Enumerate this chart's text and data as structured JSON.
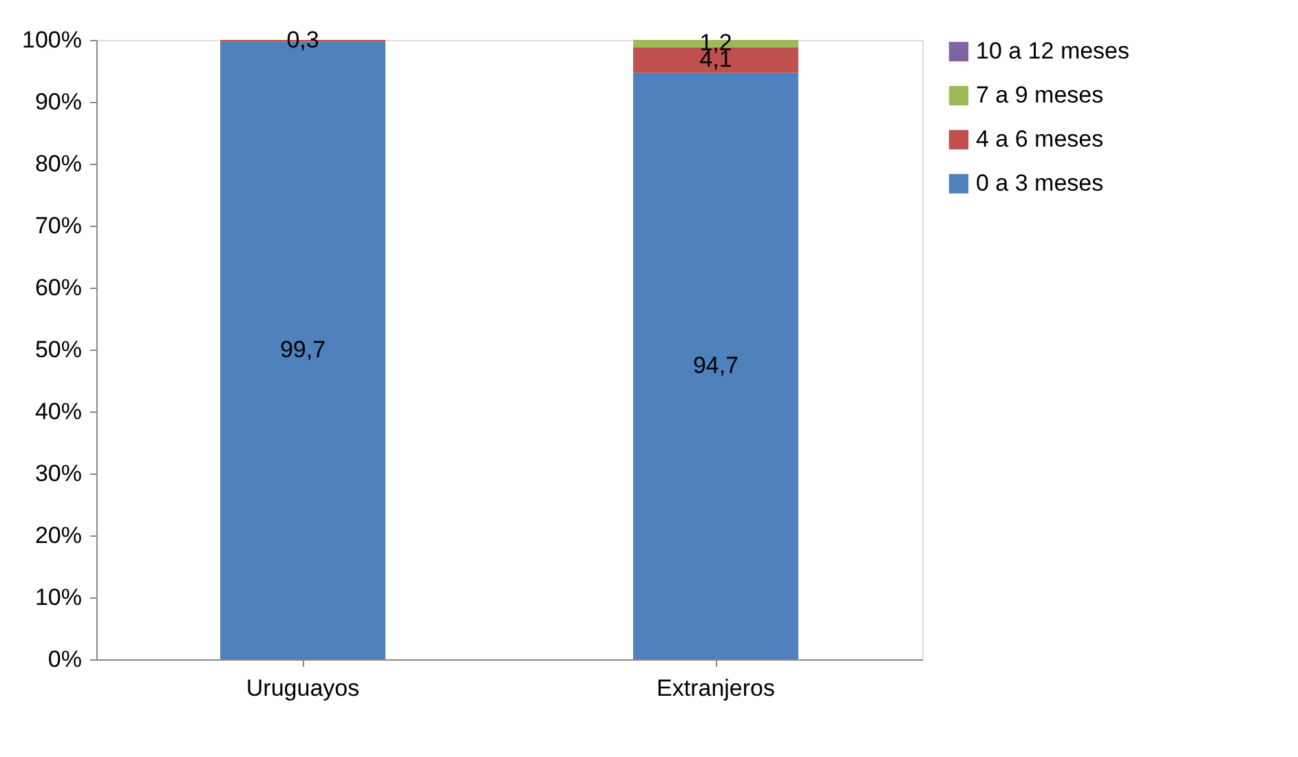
{
  "chart_data": {
    "type": "bar",
    "stacked": true,
    "categories": [
      "Uruguayos",
      "Extranjeros"
    ],
    "series": [
      {
        "name": "0 a 3 meses",
        "color": "#4f81bd",
        "values": [
          99.7,
          94.7
        ],
        "value_labels": [
          "99,7",
          "94,7"
        ]
      },
      {
        "name": "4 a 6 meses",
        "color": "#c0504d",
        "values": [
          0.3,
          4.1
        ],
        "value_labels": [
          "0,3",
          "4,1"
        ]
      },
      {
        "name": "7 a 9 meses",
        "color": "#9bbb59",
        "values": [
          null,
          1.2
        ],
        "value_labels": [
          null,
          "1,2"
        ]
      },
      {
        "name": "10 a 12 meses",
        "color": "#8064a2",
        "values": [
          null,
          null
        ],
        "value_labels": [
          null,
          null
        ]
      }
    ],
    "ylim": [
      0,
      100
    ],
    "yticks": [
      {
        "value": 0,
        "label": "0%"
      },
      {
        "value": 10,
        "label": "10%"
      },
      {
        "value": 20,
        "label": "20%"
      },
      {
        "value": 30,
        "label": "30%"
      },
      {
        "value": 40,
        "label": "40%"
      },
      {
        "value": 50,
        "label": "50%"
      },
      {
        "value": 60,
        "label": "60%"
      },
      {
        "value": 70,
        "label": "70%"
      },
      {
        "value": 80,
        "label": "80%"
      },
      {
        "value": 90,
        "label": "90%"
      },
      {
        "value": 100,
        "label": "100%"
      }
    ],
    "grid": false,
    "legend": "right"
  }
}
